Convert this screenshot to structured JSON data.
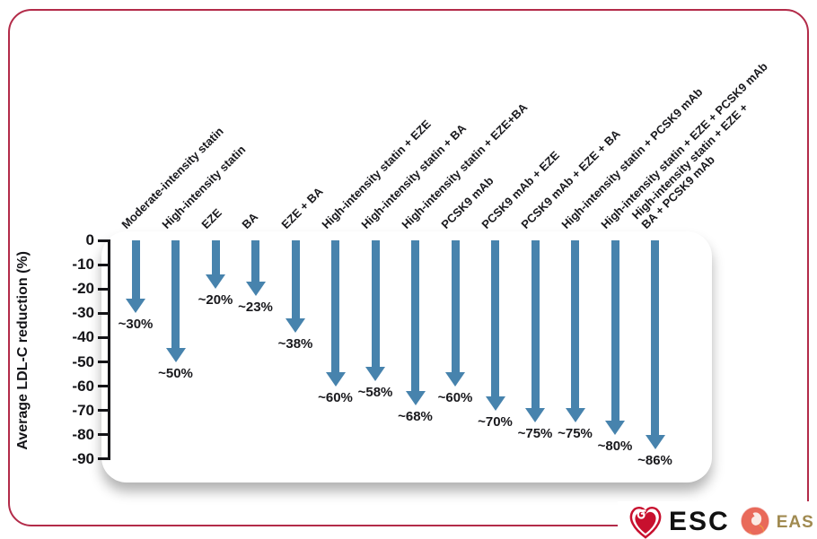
{
  "branding": {
    "esc_label": "ESC",
    "eas_label": "EAS",
    "esc_color": "#c8102e",
    "eas_text_color": "#a08a50",
    "eas_badge_color": "#e96a5a",
    "eas_swoosh_color": "#f0a13c"
  },
  "frame": {
    "border_color": "#b32b49"
  },
  "chart_data": {
    "type": "bar",
    "variant": "downward-arrows",
    "title": "",
    "xlabel": "",
    "ylabel": "Average LDL-C reduction (%)",
    "ylim": [
      -90,
      0
    ],
    "yticks": [
      0,
      -10,
      -20,
      -30,
      -40,
      -50,
      -60,
      -70,
      -80,
      -90
    ],
    "grid": false,
    "legend": false,
    "arrow_color": "#4783ad",
    "categories": [
      "Moderate-intensity statin",
      "High-intensity statin",
      "EZE",
      "BA",
      "EZE + BA",
      "High-intensity statin + EZE",
      "High-intensity statin + BA",
      "High-intensity statin + EZE+BA",
      "PCSK9 mAb",
      "PCSK9 mAb + EZE",
      "PCSK9 mAb + EZE + BA",
      "High-intensity statin + PCSK9 mAb",
      "High-intensity statin + EZE + PCSK9 mAb",
      "High-intensity statin + EZE +\nBA + PCSK9 mAb"
    ],
    "values": [
      -30,
      -50,
      -20,
      -23,
      -38,
      -60,
      -58,
      -68,
      -60,
      -70,
      -75,
      -75,
      -80,
      -86
    ],
    "data_labels": [
      "~30%",
      "~50%",
      "~20%",
      "~23%",
      "~38%",
      "~60%",
      "~58%",
      "~68%",
      "~60%",
      "~70%",
      "~75%",
      "~75%",
      "~80%",
      "~86%"
    ]
  }
}
